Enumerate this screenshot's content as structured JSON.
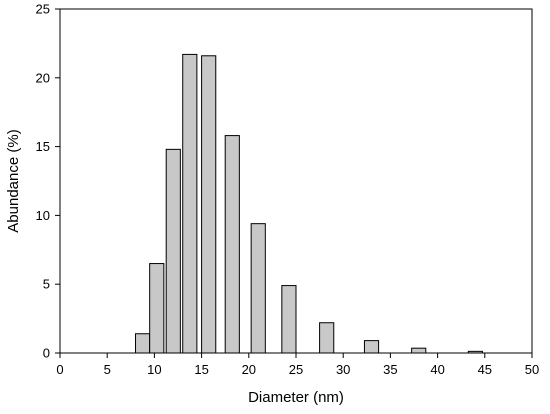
{
  "chart_data": {
    "type": "bar",
    "xlabel": "Diameter (nm)",
    "ylabel": "Abundance (%)",
    "xlim": [
      0,
      50
    ],
    "ylim": [
      0,
      25
    ],
    "x_ticks": [
      0,
      5,
      10,
      15,
      20,
      25,
      30,
      35,
      40,
      45,
      50
    ],
    "y_ticks": [
      0,
      5,
      10,
      15,
      20,
      25
    ],
    "grid": false,
    "bar_width": 1.5,
    "bar_color": "#c8c8c8",
    "x": [
      8.75,
      10.25,
      12,
      13.75,
      15.75,
      18.25,
      21,
      24.25,
      28.25,
      33,
      38,
      44
    ],
    "values": [
      1.4,
      6.5,
      14.8,
      21.7,
      21.6,
      15.8,
      9.4,
      4.9,
      2.2,
      0.9,
      0.35,
      0.12
    ]
  }
}
